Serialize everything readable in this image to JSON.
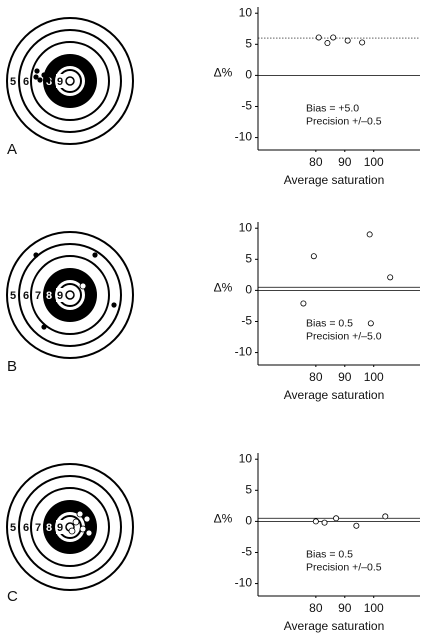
{
  "panels": [
    {
      "label": "A",
      "ring_labels": [
        "5",
        "6",
        "8",
        "9"
      ]
    },
    {
      "label": "B",
      "ring_labels": [
        "5",
        "6",
        "7",
        "8",
        "9"
      ]
    },
    {
      "label": "C",
      "ring_labels": [
        "5",
        "6",
        "7",
        "8",
        "9"
      ]
    }
  ],
  "chart_data": [
    {
      "type": "scatter",
      "x": [
        81,
        84,
        86,
        91,
        96
      ],
      "y": [
        6.1,
        5.2,
        6.1,
        5.6,
        5.3
      ],
      "xlim": [
        60,
        116
      ],
      "ylim": [
        -12,
        11
      ],
      "xticks": [
        80,
        90,
        100
      ],
      "yticks": [
        10,
        5,
        0,
        -5,
        -10
      ],
      "xlabel": "Average saturation",
      "ylabel": "Δ%",
      "color": "#000000",
      "annotations": [
        "Bias = +5.0",
        "Precision +/–0.5"
      ],
      "hlines": [
        {
          "value": 0,
          "style": "solid"
        },
        {
          "value": 6,
          "style": "dotted"
        }
      ]
    },
    {
      "type": "scatter",
      "x": [
        75.7,
        79.3,
        98.6,
        105.7,
        99
      ],
      "y": [
        -2.1,
        5.5,
        9,
        2.1,
        -5.3
      ],
      "xlim": [
        60,
        116
      ],
      "ylim": [
        -12,
        11
      ],
      "xticks": [
        80,
        90,
        100
      ],
      "yticks": [
        10,
        5,
        0,
        -5,
        -10
      ],
      "xlabel": "Average saturation",
      "ylabel": "Δ%",
      "color": "#000000",
      "annotations": [
        "Bias = 0.5",
        "Precision +/–5.0"
      ],
      "hlines": [
        {
          "value": 0,
          "style": "solid"
        },
        {
          "value": 0.5,
          "style": "solid"
        }
      ]
    },
    {
      "type": "scatter",
      "x": [
        80,
        83,
        87,
        94,
        104
      ],
      "y": [
        0,
        -0.2,
        0.5,
        -0.7,
        0.8
      ],
      "xlim": [
        60,
        116
      ],
      "ylim": [
        -12,
        11
      ],
      "xticks": [
        80,
        90,
        100
      ],
      "yticks": [
        10,
        5,
        0,
        -5,
        -10
      ],
      "xlabel": "Average saturation",
      "ylabel": "Δ%",
      "color": "#000000",
      "annotations": [
        "Bias = 0.5",
        "Precision +/–0.5"
      ],
      "hlines": [
        {
          "value": 0,
          "style": "solid"
        },
        {
          "value": 0.5,
          "style": "solid"
        }
      ]
    }
  ]
}
